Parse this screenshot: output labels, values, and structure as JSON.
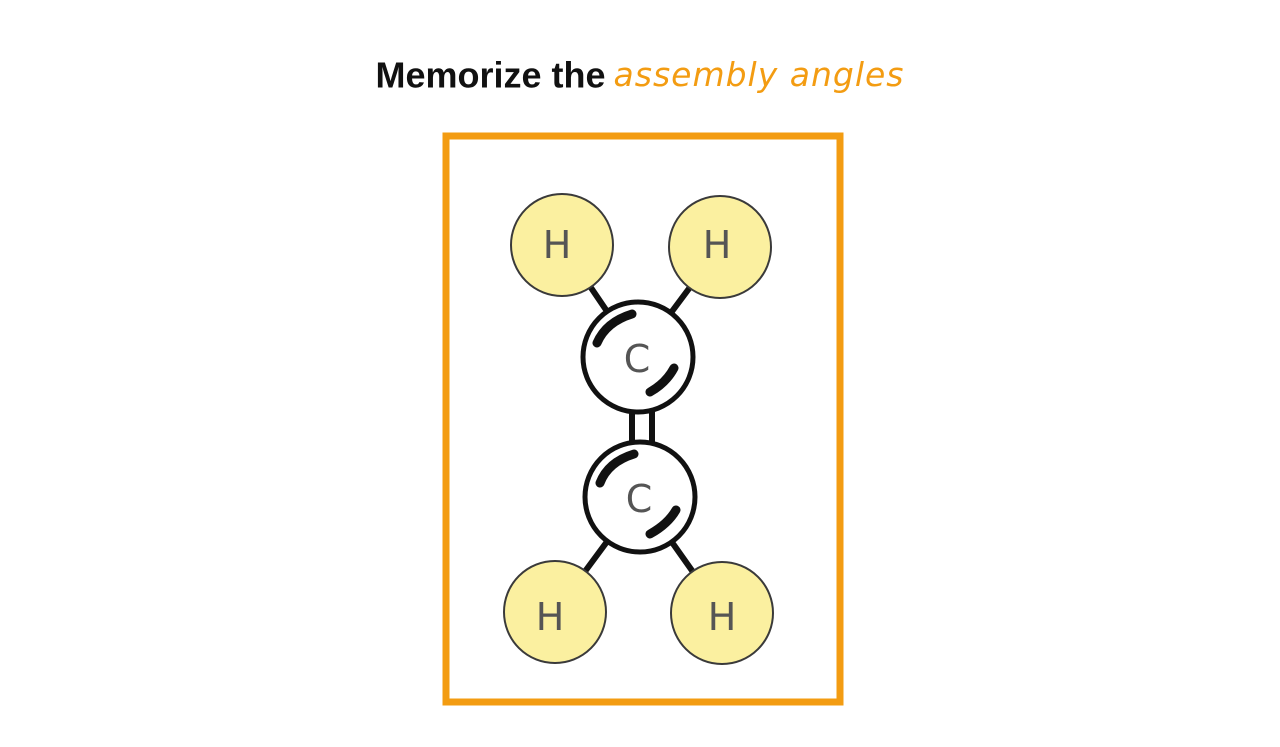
{
  "title": {
    "prefix": "Memorize the",
    "highlight": "assembly angles"
  },
  "molecule": {
    "atoms": [
      {
        "id": "h1",
        "element": "H",
        "label": "H"
      },
      {
        "id": "h2",
        "element": "H",
        "label": "H"
      },
      {
        "id": "c1",
        "element": "C",
        "label": "C"
      },
      {
        "id": "c2",
        "element": "C",
        "label": "C"
      },
      {
        "id": "h3",
        "element": "H",
        "label": "H"
      },
      {
        "id": "h4",
        "element": "H",
        "label": "H"
      }
    ],
    "bonds": [
      {
        "from": "h1",
        "to": "c1",
        "order": 1
      },
      {
        "from": "h2",
        "to": "c1",
        "order": 1
      },
      {
        "from": "c1",
        "to": "c2",
        "order": 2
      },
      {
        "from": "c2",
        "to": "h3",
        "order": 1
      },
      {
        "from": "c2",
        "to": "h4",
        "order": 1
      }
    ]
  },
  "colors": {
    "frame": "#f39c12",
    "accent_text": "#f39c12",
    "hydrogen_fill": "#fbf0a0",
    "hydrogen_stroke": "#3a3a3a",
    "carbon_fill": "#ffffff",
    "line": "#111111"
  }
}
